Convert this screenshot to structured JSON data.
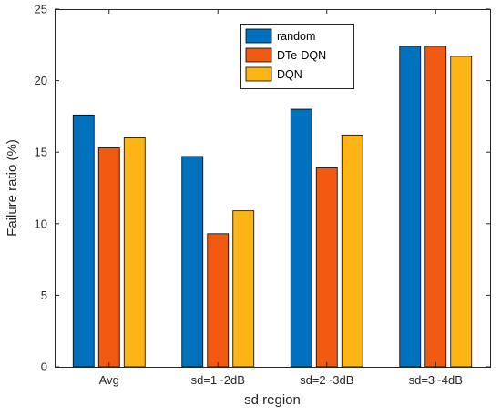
{
  "chart_data": {
    "type": "bar",
    "xlabel": "sd region",
    "ylabel": "Failure ratio (%)",
    "ylim": [
      0,
      25
    ],
    "yticks": [
      0,
      5,
      10,
      15,
      20,
      25
    ],
    "grid": false,
    "legend_position": "top-center",
    "categories": [
      "Avg",
      "sd=1~2dB",
      "sd=2~3dB",
      "sd=3~4dB"
    ],
    "series": [
      {
        "name": "random",
        "color": "#0072bd",
        "values": [
          17.6,
          14.7,
          18.0,
          22.4
        ]
      },
      {
        "name": "DTe-DQN",
        "color": "#f25a12",
        "values": [
          15.3,
          9.3,
          13.9,
          22.4
        ]
      },
      {
        "name": "DQN",
        "color": "#fdb515",
        "values": [
          16.0,
          10.9,
          16.2,
          21.7
        ]
      }
    ]
  }
}
